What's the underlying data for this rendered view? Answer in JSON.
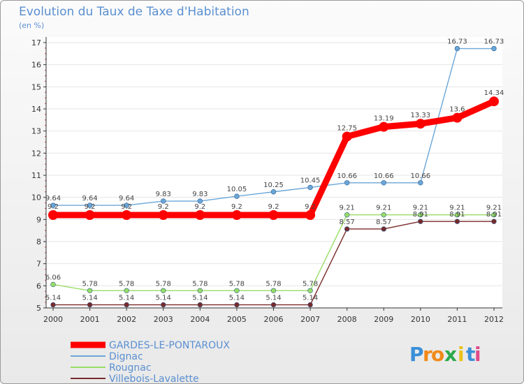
{
  "chart_data": {
    "type": "line",
    "title": "Evolution du Taux de Taxe d'Habitation",
    "subtitle": "(en %)",
    "xlabel": "",
    "ylabel": "",
    "ylim": [
      5,
      17
    ],
    "yticks": [
      5,
      6,
      7,
      8,
      9,
      10,
      11,
      12,
      13,
      14,
      15,
      16,
      17
    ],
    "categories": [
      "2000",
      "2001",
      "2002",
      "2003",
      "2004",
      "2005",
      "2006",
      "2007",
      "2008",
      "2009",
      "2010",
      "2011",
      "2012"
    ],
    "series": [
      {
        "name": "GARDES-LE-PONTAROUX",
        "color": "#ff0000",
        "values": [
          9.2,
          9.2,
          9.2,
          9.2,
          9.2,
          9.2,
          9.2,
          9.2,
          12.75,
          13.19,
          13.33,
          13.6,
          14.34
        ],
        "labels": [
          "9.2",
          "9.2",
          "9.2",
          "9.2",
          "9.2",
          "9.2",
          "9.2",
          "9.2",
          "12.75",
          "13.19",
          "13.33",
          "13.6",
          "14.34"
        ]
      },
      {
        "name": "Dignac",
        "color": "#6aa6d8",
        "values": [
          9.64,
          9.64,
          9.64,
          9.83,
          9.83,
          10.05,
          10.25,
          10.45,
          10.66,
          10.66,
          10.66,
          16.73,
          16.73
        ],
        "labels": [
          "9.64",
          "9.64",
          "9.64",
          "9.83",
          "9.83",
          "10.05",
          "10.25",
          "10.45",
          "10.66",
          "10.66",
          "10.66",
          "16.73",
          "16.73"
        ]
      },
      {
        "name": "Rougnac",
        "color": "#99dd66",
        "values": [
          6.06,
          5.78,
          5.78,
          5.78,
          5.78,
          5.78,
          5.78,
          5.78,
          9.21,
          9.21,
          9.21,
          9.21,
          9.21
        ],
        "labels": [
          "6.06",
          "5.78",
          "5.78",
          "5.78",
          "5.78",
          "5.78",
          "5.78",
          "5.78",
          "9.21",
          "9.21",
          "9.21",
          "9.21",
          "9.21"
        ]
      },
      {
        "name": "Villebois-Lavalette",
        "color": "#7a2a2a",
        "values": [
          5.14,
          5.14,
          5.14,
          5.14,
          5.14,
          5.14,
          5.14,
          5.14,
          8.57,
          8.57,
          8.91,
          8.91,
          8.91
        ],
        "labels": [
          "5.14",
          "5.14",
          "5.14",
          "5.14",
          "5.14",
          "5.14",
          "5.14",
          "5.14",
          "8.57",
          "8.57",
          "8.91",
          "8.91",
          "8.91"
        ]
      }
    ],
    "legend_position": "bottom-left"
  },
  "logo": {
    "letters": [
      "P",
      "r",
      "o",
      "x",
      "i",
      "t",
      "i"
    ],
    "colors": [
      "#3a8fd8",
      "#f08a1a",
      "#f08a1a",
      "#2ca84a",
      "#e8c21a",
      "#3a8fd8",
      "#e04a8a"
    ]
  }
}
